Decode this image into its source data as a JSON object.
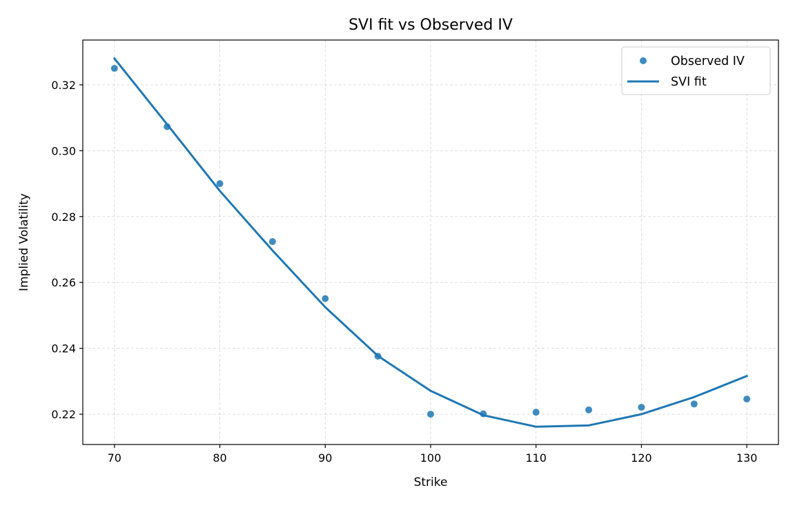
{
  "chart_data": {
    "type": "scatter",
    "title": "SVI fit vs Observed IV",
    "xlabel": "Strike",
    "ylabel": "Implied Volatility",
    "xlim": [
      67,
      133
    ],
    "ylim": [
      0.2108,
      0.3336
    ],
    "x_ticks": [
      70,
      80,
      90,
      100,
      110,
      120,
      130
    ],
    "y_ticks": [
      0.22,
      0.24,
      0.26,
      0.28,
      0.3,
      0.32
    ],
    "grid": true,
    "legend_position": "top-right",
    "series": [
      {
        "name": "Observed IV",
        "kind": "scatter",
        "color": "#1f77b4",
        "x": [
          70,
          75,
          80,
          85,
          90,
          95,
          100,
          105,
          110,
          115,
          120,
          125,
          130
        ],
        "y": [
          0.325,
          0.3073,
          0.29,
          0.2724,
          0.2551,
          0.2376,
          0.22,
          0.2201,
          0.2206,
          0.2213,
          0.2221,
          0.2231,
          0.2246
        ]
      },
      {
        "name": "SVI fit",
        "kind": "line",
        "color": "#1f77b4",
        "x": [
          70,
          75,
          80,
          85,
          90,
          95,
          100,
          105,
          110,
          115,
          120,
          125,
          130
        ],
        "y": [
          0.328,
          0.308,
          0.2878,
          0.2697,
          0.2525,
          0.2377,
          0.2271,
          0.2197,
          0.2162,
          0.2166,
          0.22,
          0.2252,
          0.2316
        ]
      }
    ]
  }
}
